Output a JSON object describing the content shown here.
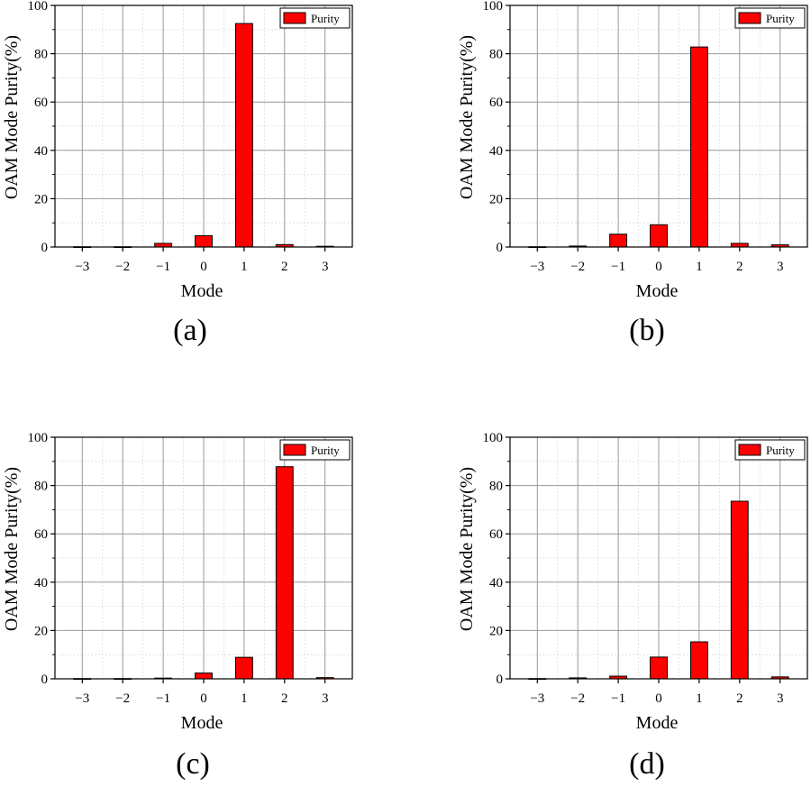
{
  "figure": {
    "bar_color": "#ff0000",
    "bar_edge_color": "#000000",
    "grid_major_color": "#999999",
    "grid_minor_color": "#dddddd"
  },
  "chart_data": [
    {
      "panel_label": "(a)",
      "type": "bar",
      "xlabel": "Mode",
      "ylabel": "OAM Mode Purity(%)",
      "x_tick_labels": [
        "−3",
        "−2",
        "−1",
        "0",
        "1",
        "2",
        "3"
      ],
      "categories": [
        -3,
        -2,
        -1,
        0,
        1,
        2,
        3
      ],
      "values": [
        0.1,
        0.1,
        1.5,
        4.7,
        92.5,
        1.0,
        0.3
      ],
      "ylim": [
        0,
        100
      ],
      "y_ticks": [
        0,
        20,
        40,
        60,
        80,
        100
      ],
      "legend": [
        "Purity"
      ],
      "legend_position": "top-right",
      "grid": true
    },
    {
      "panel_label": "(b)",
      "type": "bar",
      "xlabel": "Mode",
      "ylabel": "OAM Mode Purity(%)",
      "x_tick_labels": [
        "−3",
        "−2",
        "−1",
        "0",
        "1",
        "2",
        "3"
      ],
      "categories": [
        -3,
        -2,
        -1,
        0,
        1,
        2,
        3
      ],
      "values": [
        0.1,
        0.4,
        5.3,
        9.2,
        82.8,
        1.5,
        0.9
      ],
      "ylim": [
        0,
        100
      ],
      "y_ticks": [
        0,
        20,
        40,
        60,
        80,
        100
      ],
      "legend": [
        "Purity"
      ],
      "legend_position": "top-right",
      "grid": true
    },
    {
      "panel_label": "(c)",
      "type": "bar",
      "xlabel": "Mode",
      "ylabel": "OAM Mode Purity(%)",
      "x_tick_labels": [
        "−3",
        "−2",
        "−1",
        "0",
        "1",
        "2",
        "3"
      ],
      "categories": [
        -3,
        -2,
        -1,
        0,
        1,
        2,
        3
      ],
      "values": [
        0.1,
        0.1,
        0.3,
        2.4,
        8.9,
        87.8,
        0.5
      ],
      "ylim": [
        0,
        100
      ],
      "y_ticks": [
        0,
        20,
        40,
        60,
        80,
        100
      ],
      "legend": [
        "Purity"
      ],
      "legend_position": "top-right",
      "grid": true
    },
    {
      "panel_label": "(d)",
      "type": "bar",
      "xlabel": "Mode",
      "ylabel": "OAM Mode Purity(%)",
      "x_tick_labels": [
        "−3",
        "−2",
        "−1",
        "0",
        "1",
        "2",
        "3"
      ],
      "categories": [
        -3,
        -2,
        -1,
        0,
        1,
        2,
        3
      ],
      "values": [
        0.1,
        0.4,
        1.1,
        9.0,
        15.3,
        73.5,
        0.8
      ],
      "ylim": [
        0,
        100
      ],
      "y_ticks": [
        0,
        20,
        40,
        60,
        80,
        100
      ],
      "legend": [
        "Purity"
      ],
      "legend_position": "top-right",
      "grid": true
    }
  ]
}
